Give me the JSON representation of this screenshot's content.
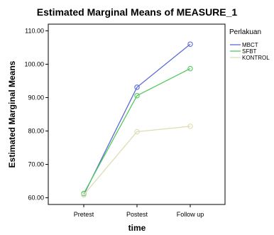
{
  "chart_data": {
    "type": "line",
    "title": "Estimated Marginal Means of MEASURE_1",
    "xlabel": "time",
    "ylabel": "Estimated Marginal Means",
    "categories": [
      "Pretest",
      "Postest",
      "Follow up"
    ],
    "ylim": [
      58.0,
      112.0
    ],
    "yticks": [
      60,
      70,
      80,
      90,
      100,
      110
    ],
    "ytick_labels": [
      "60.00",
      "70.00",
      "80.00",
      "90.00",
      "100.00",
      "110.00"
    ],
    "grid": false,
    "legend_title": "Perlakuan",
    "legend_position": "right",
    "series": [
      {
        "name": "MBCT",
        "color": "#5a6ad6",
        "values": [
          60.9,
          93.1,
          106.0
        ]
      },
      {
        "name": "SFBT",
        "color": "#52c95c",
        "values": [
          61.3,
          90.6,
          98.7
        ]
      },
      {
        "name": "KONTROL",
        "color": "#dedcb4",
        "values": [
          60.9,
          79.8,
          81.4
        ]
      }
    ]
  }
}
